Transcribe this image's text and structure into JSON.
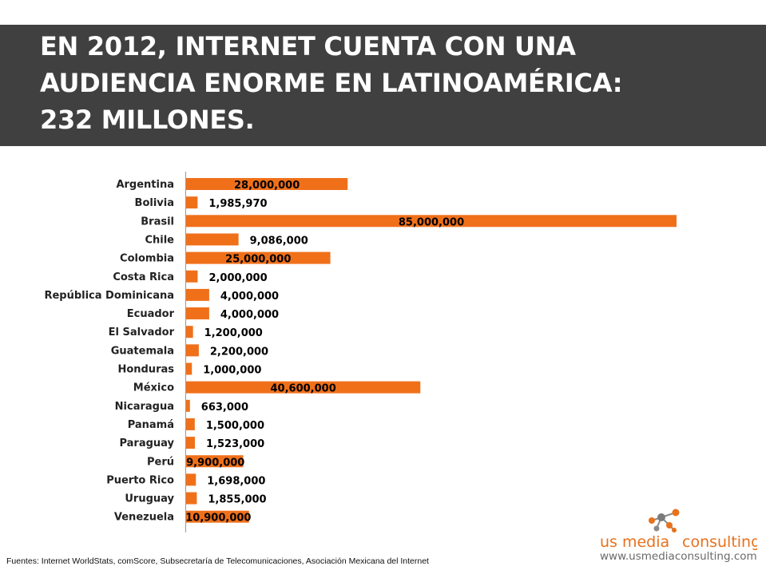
{
  "title": {
    "line1": "EN 2012, INTERNET CUENTA CON UNA",
    "line2": "AUDIENCIA ENORME EN LATINOAMÉRICA:",
    "line3": "232 MILLONES."
  },
  "colors": {
    "bar": "#f0701a",
    "title_band": "#404040",
    "axis": "#999999"
  },
  "chart_data": {
    "type": "bar",
    "orientation": "horizontal",
    "categories": [
      "Argentina",
      "Bolivia",
      "Brasil",
      "Chile",
      "Colombia",
      "Costa Rica",
      "República Dominicana",
      "Ecuador",
      "El Salvador",
      "Guatemala",
      "Honduras",
      "México",
      "Nicaragua",
      "Panamá",
      "Paraguay",
      "Perú",
      "Puerto Rico",
      "Uruguay",
      "Venezuela"
    ],
    "values": [
      28000000,
      1985970,
      85000000,
      9086000,
      25000000,
      2000000,
      4000000,
      4000000,
      1200000,
      2200000,
      1000000,
      40600000,
      663000,
      1500000,
      1523000,
      9900000,
      1698000,
      1855000,
      10900000
    ],
    "value_labels": [
      "28,000,000",
      "1,985,970",
      "85,000,000",
      "9,086,000",
      "25,000,000",
      "2,000,000",
      "4,000,000",
      "4,000,000",
      "1,200,000",
      "2,200,000",
      "1,000,000",
      "40,600,000",
      "663,000",
      "1,500,000",
      "1,523,000",
      "9,900,000",
      "1,698,000",
      "1,855,000",
      "10,900,000"
    ],
    "label_inside": [
      true,
      false,
      true,
      false,
      true,
      false,
      false,
      false,
      false,
      false,
      false,
      true,
      false,
      false,
      false,
      true,
      false,
      false,
      true
    ],
    "xlim": [
      0,
      85000000
    ],
    "grid": false,
    "legend": "none",
    "title": "",
    "xlabel": "",
    "ylabel": ""
  },
  "footer": {
    "sources": "Fuentes: Internet WorldStats, comScore, Subsecretaría de Telecomunicaciones, Asociación Mexicana del Internet"
  },
  "logo": {
    "name_part1": "us media",
    "name_part2": "consulting",
    "url": "www.usmediaconsulting.com"
  }
}
